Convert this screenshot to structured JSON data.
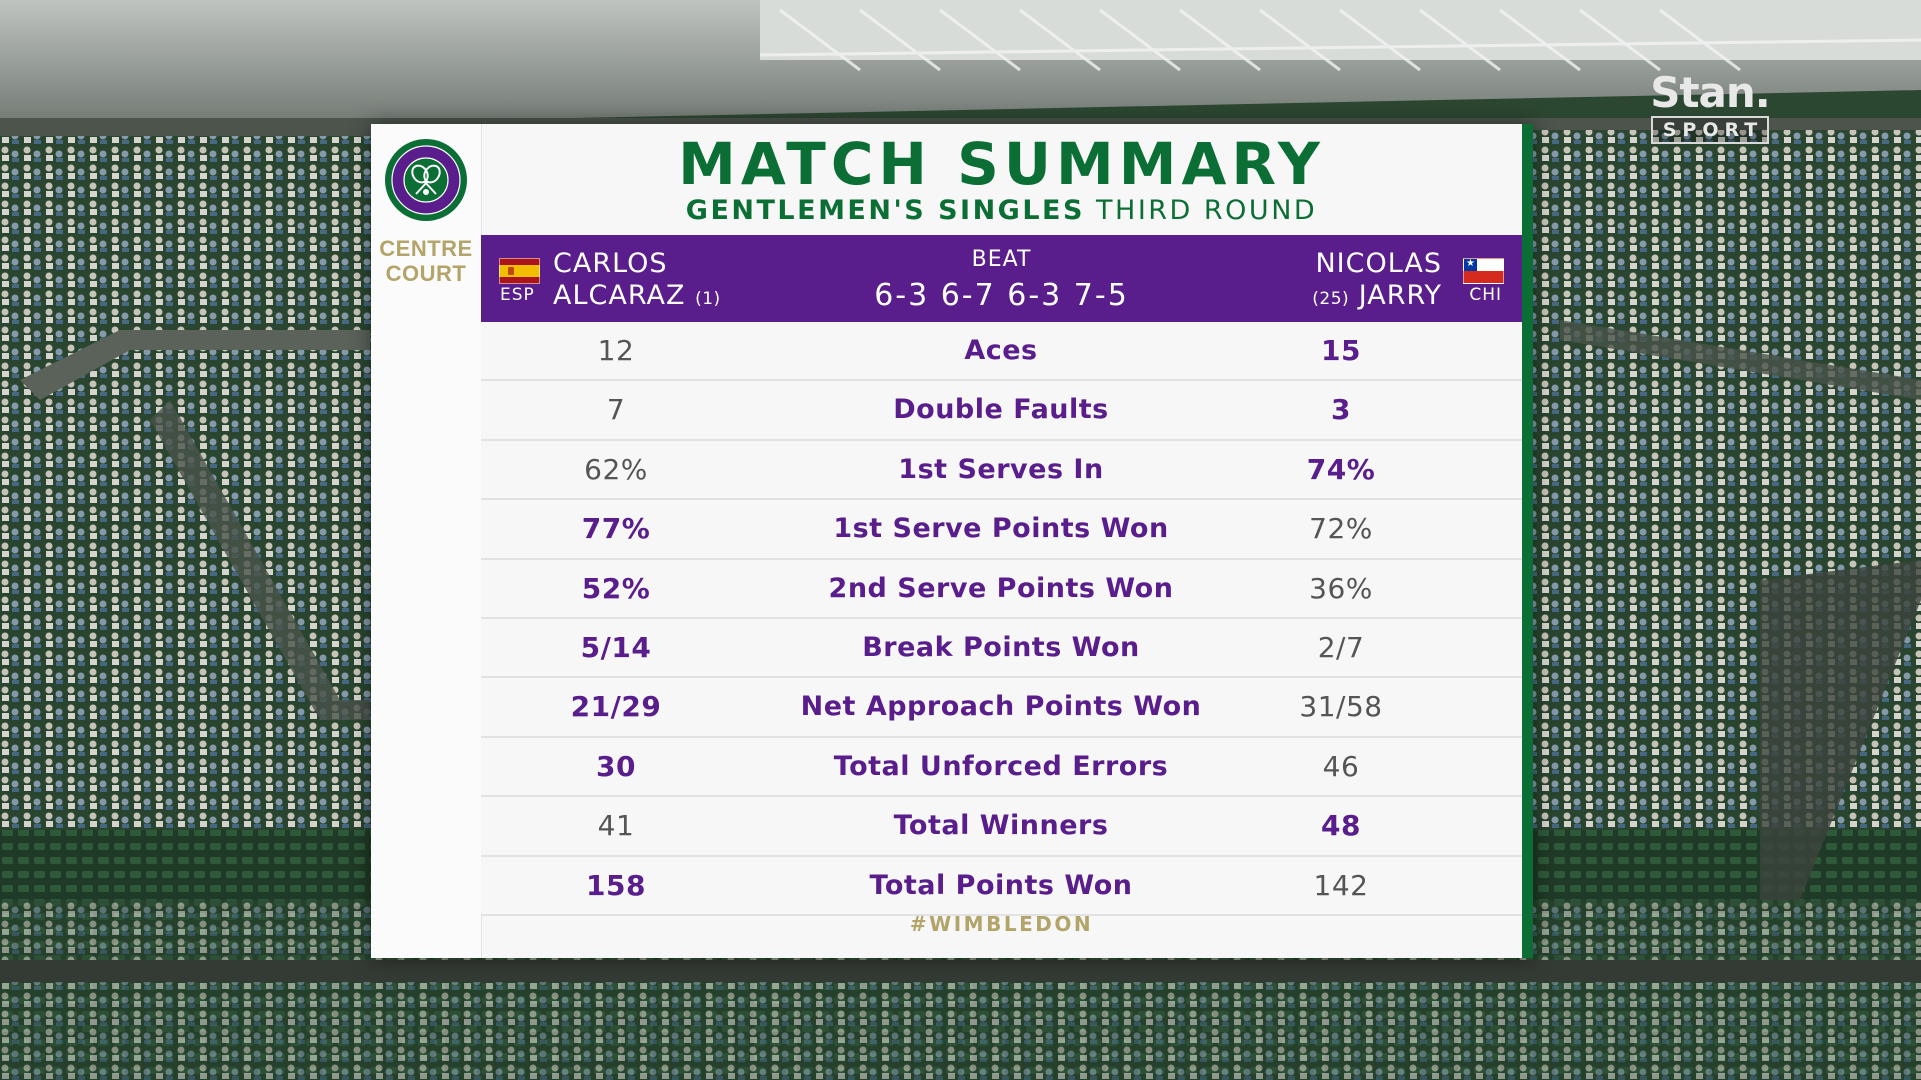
{
  "broadcaster": {
    "name": "Stan.",
    "channel": "SPORT"
  },
  "tournament": {
    "logo_icon": "wimbledon-crest-icon",
    "venue_line1": "CENTRE",
    "venue_line2": "COURT"
  },
  "header": {
    "title": "MATCH SUMMARY",
    "event": "GENTLEMEN'S SINGLES",
    "round": "THIRD ROUND"
  },
  "result": {
    "player1": {
      "first": "CARLOS",
      "last": "ALCARAZ",
      "seed": "(1)",
      "country": "ESP",
      "flag_icon": "spain-flag-icon"
    },
    "player2": {
      "first": "NICOLAS",
      "last": "JARRY",
      "seed": "(25)",
      "country": "CHI",
      "flag_icon": "chile-flag-icon"
    },
    "result_word": "BEAT",
    "score": "6-3 6-7 6-3 7-5"
  },
  "stats": [
    {
      "label": "Aces",
      "p1": "12",
      "p2": "15",
      "lead": "p2"
    },
    {
      "label": "Double Faults",
      "p1": "7",
      "p2": "3",
      "lead": "p2"
    },
    {
      "label": "1st Serves In",
      "p1": "62%",
      "p2": "74%",
      "lead": "p2"
    },
    {
      "label": "1st Serve Points Won",
      "p1": "77%",
      "p2": "72%",
      "lead": "p1"
    },
    {
      "label": "2nd Serve Points Won",
      "p1": "52%",
      "p2": "36%",
      "lead": "p1"
    },
    {
      "label": "Break Points Won",
      "p1": "5/14",
      "p2": "2/7",
      "lead": "p1"
    },
    {
      "label": "Net Approach Points Won",
      "p1": "21/29",
      "p2": "31/58",
      "lead": "p1"
    },
    {
      "label": "Total Unforced Errors",
      "p1": "30",
      "p2": "46",
      "lead": "p1"
    },
    {
      "label": "Total Winners",
      "p1": "41",
      "p2": "48",
      "lead": "p2"
    },
    {
      "label": "Total Points Won",
      "p1": "158",
      "p2": "142",
      "lead": "p1"
    }
  ],
  "footer": {
    "hashtag": "#WIMBLEDON"
  },
  "colors": {
    "wimbledon_green": "#0b6e35",
    "wimbledon_purple": "#5a1d8c",
    "gold": "#b3a46a"
  }
}
